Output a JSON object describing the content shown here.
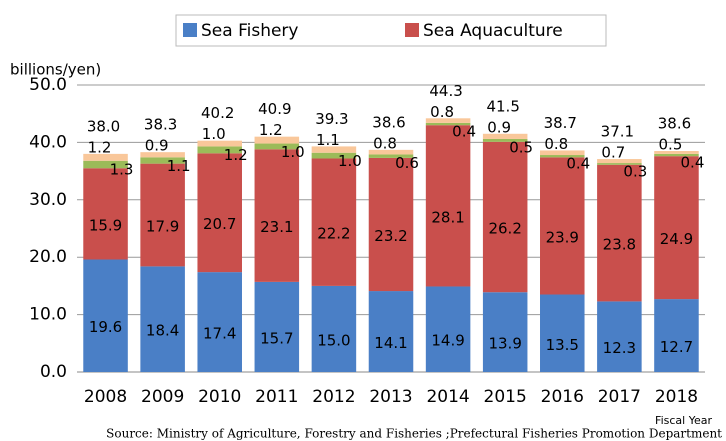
{
  "chart_data": {
    "type": "stacked_bar",
    "y_label": "billions/yen)",
    "x_label": "Fiscal Year",
    "source": "Source: Ministry of Agriculture, Forestry and Fisheries ;Prefectural Fisheries Promotion Department",
    "categories": [
      "2008",
      "2009",
      "2010",
      "2011",
      "2012",
      "2013",
      "2014",
      "2015",
      "2016",
      "2017",
      "2018"
    ],
    "series": [
      {
        "name": "Sea Fishery",
        "color": "#4a7fc6",
        "values": [
          19.6,
          18.4,
          17.4,
          15.7,
          15.0,
          14.1,
          14.9,
          13.9,
          13.5,
          12.3,
          12.7
        ],
        "value_labels": [
          "19.6",
          "18.4",
          "17.4",
          "15.7",
          "15.0",
          "14.1",
          "14.9",
          "13.9",
          "13.5",
          "12.3",
          "12.7"
        ]
      },
      {
        "name": "Sea Aquaculture",
        "color": "#c94f4c",
        "values": [
          15.9,
          17.9,
          20.7,
          23.1,
          22.2,
          23.2,
          28.1,
          26.2,
          23.9,
          23.8,
          24.9
        ],
        "value_labels": [
          "15.9",
          "17.9",
          "20.7",
          "23.1",
          "22.2",
          "23.2",
          "28.1",
          "26.2",
          "23.9",
          "23.8",
          "24.9"
        ]
      },
      {
        "color": "#9bbb59",
        "values": [
          1.3,
          1.1,
          1.2,
          1.0,
          1.0,
          0.6,
          0.4,
          0.5,
          0.4,
          0.3,
          0.4
        ],
        "value_labels": [
          "1.3",
          "1.1",
          "1.2",
          "1.0",
          "1.0",
          "0.6",
          "0.4",
          "0.5",
          "0.4",
          "0.3",
          "0.4"
        ]
      },
      {
        "color": "#f9c79a",
        "values": [
          1.2,
          0.9,
          1.0,
          1.2,
          1.1,
          0.8,
          0.8,
          0.9,
          0.8,
          0.7,
          0.5
        ],
        "value_labels": [
          "1.2",
          "0.9",
          "1.0",
          "1.2",
          "1.1",
          "0.8",
          "0.8",
          "0.9",
          "0.8",
          "0.7",
          "0.5"
        ]
      }
    ],
    "totals": [
      "38.0",
      "38.3",
      "40.2",
      "40.9",
      "39.3",
      "38.6",
      "44.3",
      "41.5",
      "38.7",
      "37.1",
      "38.6"
    ],
    "ylim": [
      0,
      50
    ],
    "yticks": [
      {
        "value": 0,
        "label": "0.0"
      },
      {
        "value": 10,
        "label": "10.0"
      },
      {
        "value": 20,
        "label": "20.0"
      },
      {
        "value": 30,
        "label": "30.0"
      },
      {
        "value": 40,
        "label": "40.0"
      },
      {
        "value": 50,
        "label": "50.0"
      }
    ],
    "grid": true
  }
}
